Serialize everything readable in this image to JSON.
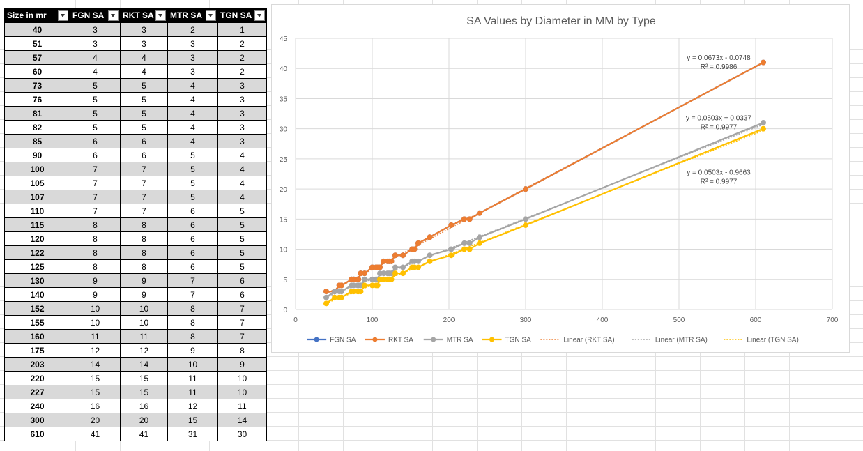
{
  "table": {
    "headers": [
      "Size in mr",
      "FGN SA",
      "RKT SA",
      "MTR SA",
      "TGN SA"
    ],
    "rows": [
      [
        40,
        3,
        3,
        2,
        1
      ],
      [
        51,
        3,
        3,
        3,
        2
      ],
      [
        57,
        4,
        4,
        3,
        2
      ],
      [
        60,
        4,
        4,
        3,
        2
      ],
      [
        73,
        5,
        5,
        4,
        3
      ],
      [
        76,
        5,
        5,
        4,
        3
      ],
      [
        81,
        5,
        5,
        4,
        3
      ],
      [
        82,
        5,
        5,
        4,
        3
      ],
      [
        85,
        6,
        6,
        4,
        3
      ],
      [
        90,
        6,
        6,
        5,
        4
      ],
      [
        100,
        7,
        7,
        5,
        4
      ],
      [
        105,
        7,
        7,
        5,
        4
      ],
      [
        107,
        7,
        7,
        5,
        4
      ],
      [
        110,
        7,
        7,
        6,
        5
      ],
      [
        115,
        8,
        8,
        6,
        5
      ],
      [
        120,
        8,
        8,
        6,
        5
      ],
      [
        122,
        8,
        8,
        6,
        5
      ],
      [
        125,
        8,
        8,
        6,
        5
      ],
      [
        130,
        9,
        9,
        7,
        6
      ],
      [
        140,
        9,
        9,
        7,
        6
      ],
      [
        152,
        10,
        10,
        8,
        7
      ],
      [
        155,
        10,
        10,
        8,
        7
      ],
      [
        160,
        11,
        11,
        8,
        7
      ],
      [
        175,
        12,
        12,
        9,
        8
      ],
      [
        203,
        14,
        14,
        10,
        9
      ],
      [
        220,
        15,
        15,
        11,
        10
      ],
      [
        227,
        15,
        15,
        11,
        10
      ],
      [
        240,
        16,
        16,
        12,
        11
      ],
      [
        300,
        20,
        20,
        15,
        14
      ],
      [
        610,
        41,
        41,
        31,
        30
      ]
    ]
  },
  "chart_data": {
    "type": "scatter",
    "title": "SA Values by Diameter in MM by Type",
    "xlabel": "",
    "ylabel": "",
    "xlim": [
      0,
      700
    ],
    "ylim": [
      0,
      45
    ],
    "xticks": [
      0,
      100,
      200,
      300,
      400,
      500,
      600,
      700
    ],
    "yticks": [
      0,
      5,
      10,
      15,
      20,
      25,
      30,
      35,
      40,
      45
    ],
    "grid": true,
    "legend": "bottom",
    "x": [
      40,
      51,
      57,
      60,
      73,
      76,
      81,
      82,
      85,
      90,
      100,
      105,
      107,
      110,
      115,
      120,
      122,
      125,
      130,
      140,
      152,
      155,
      160,
      175,
      203,
      220,
      227,
      240,
      300,
      610
    ],
    "series": [
      {
        "name": "FGN SA",
        "color": "#4472c4",
        "values": [
          3,
          3,
          4,
          4,
          5,
          5,
          5,
          5,
          6,
          6,
          7,
          7,
          7,
          7,
          8,
          8,
          8,
          8,
          9,
          9,
          10,
          10,
          11,
          12,
          14,
          15,
          15,
          16,
          20,
          41
        ]
      },
      {
        "name": "RKT SA",
        "color": "#ed7d31",
        "values": [
          3,
          3,
          4,
          4,
          5,
          5,
          5,
          5,
          6,
          6,
          7,
          7,
          7,
          7,
          8,
          8,
          8,
          8,
          9,
          9,
          10,
          10,
          11,
          12,
          14,
          15,
          15,
          16,
          20,
          41
        ]
      },
      {
        "name": "MTR SA",
        "color": "#a5a5a5",
        "values": [
          2,
          3,
          3,
          3,
          4,
          4,
          4,
          4,
          4,
          5,
          5,
          5,
          5,
          6,
          6,
          6,
          6,
          6,
          7,
          7,
          8,
          8,
          8,
          9,
          10,
          11,
          11,
          12,
          15,
          31
        ]
      },
      {
        "name": "TGN SA",
        "color": "#ffc000",
        "values": [
          1,
          2,
          2,
          2,
          3,
          3,
          3,
          3,
          3,
          4,
          4,
          4,
          4,
          5,
          5,
          5,
          5,
          5,
          6,
          6,
          7,
          7,
          7,
          8,
          9,
          10,
          10,
          11,
          14,
          30
        ]
      }
    ],
    "trendlines": [
      {
        "name": "Linear (RKT SA)",
        "color": "#ed7d31",
        "slope": 0.0673,
        "intercept": -0.0748,
        "equation": "y = 0.0673x - 0.0748",
        "r2": "R² = 0.9986",
        "label_anchor": [
          610,
          40
        ]
      },
      {
        "name": "Linear (MTR SA)",
        "color": "#a5a5a5",
        "slope": 0.0503,
        "intercept": 0.0337,
        "equation": "y = 0.0503x + 0.0337",
        "r2": "R² = 0.9977",
        "label_anchor": [
          610,
          30
        ]
      },
      {
        "name": "Linear (TGN SA)",
        "color": "#ffc000",
        "slope": 0.0503,
        "intercept": -0.9663,
        "equation": "y = 0.0503x - 0.9663",
        "r2": "R² = 0.9977",
        "label_anchor": [
          610,
          21
        ]
      }
    ]
  }
}
